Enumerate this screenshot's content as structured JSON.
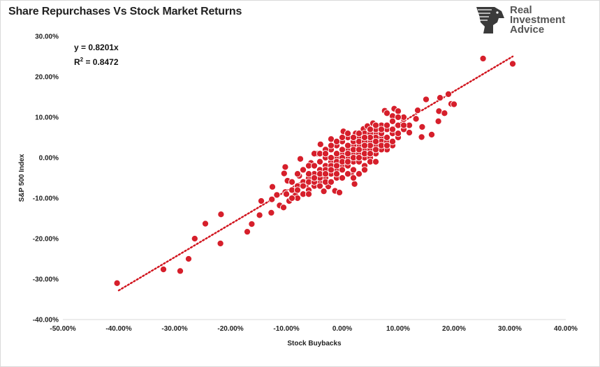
{
  "header": {
    "title": "Share Repurchases Vs Stock Market Returns"
  },
  "logo": {
    "line1": "Real",
    "line2": "Investment",
    "line3": "Advice",
    "icon": "eagle-head-icon"
  },
  "regression": {
    "equation": "y = 0.8201x",
    "r2_prefix": "R",
    "r2_sup": "2",
    "r2_value": " = 0.8472",
    "slope": 0.8201,
    "line_color": "#d0101a",
    "x_range": [
      -40,
      30.5
    ]
  },
  "colors": {
    "point_fill": "#d61f2b",
    "point_stroke": "#ffffff",
    "grid": "#e6e6e6"
  },
  "chart_data": {
    "type": "scatter",
    "title": "Share Repurchases Vs Stock Market Returns",
    "xlabel": "Stock Buybacks",
    "ylabel": "S&P 500 Index",
    "xlim": [
      -50,
      40
    ],
    "ylim": [
      -40,
      30
    ],
    "x_ticks": [
      "-50.00%",
      "-40.00%",
      "-30.00%",
      "-20.00%",
      "-10.00%",
      "0.00%",
      "10.00%",
      "20.00%",
      "30.00%",
      "40.00%"
    ],
    "y_ticks": [
      "30.00%",
      "20.00%",
      "10.00%",
      "0.00%",
      "-10.00%",
      "-20.00%",
      "-30.00%",
      "-40.00%"
    ],
    "grid": "none",
    "points": [
      [
        -40.3,
        -31
      ],
      [
        -32,
        -27.6
      ],
      [
        -29,
        -28
      ],
      [
        -27.5,
        -25
      ],
      [
        -26.4,
        -20
      ],
      [
        -24.5,
        -16.3
      ],
      [
        -21.7,
        -14
      ],
      [
        -21.8,
        -21.2
      ],
      [
        -17,
        -18.3
      ],
      [
        -16.2,
        -16.4
      ],
      [
        -14.8,
        -14.2
      ],
      [
        -14.5,
        -10.7
      ],
      [
        -12.6,
        -10.3
      ],
      [
        -12.7,
        -13.6
      ],
      [
        -12.5,
        -7.2
      ],
      [
        -11.7,
        -9.2
      ],
      [
        -11.2,
        -11.8
      ],
      [
        -10.5,
        -12.3
      ],
      [
        -10.2,
        -8.5
      ],
      [
        -9.5,
        -10.7
      ],
      [
        -9.8,
        -5.7
      ],
      [
        -10.4,
        -3.9
      ],
      [
        -10.2,
        -2.3
      ],
      [
        -8.4,
        -9.3
      ],
      [
        -7.7,
        -4.5
      ],
      [
        -7.5,
        -0.3
      ],
      [
        -6.5,
        -6.8
      ],
      [
        -5.6,
        -1.3
      ],
      [
        -4.5,
        1
      ],
      [
        -3.9,
        3.3
      ],
      [
        -3.3,
        -8.3
      ],
      [
        -2.5,
        -7.1
      ],
      [
        -2,
        4.6
      ],
      [
        -1.3,
        -8.2
      ],
      [
        -0.5,
        -8.6
      ],
      [
        0.2,
        6.5
      ],
      [
        1.6,
        -4
      ],
      [
        2.2,
        -6.5
      ],
      [
        2.4,
        6
      ],
      [
        3.8,
        7.1
      ],
      [
        4.5,
        7.8
      ],
      [
        5,
        5.2
      ],
      [
        5.5,
        8.5
      ],
      [
        6.8,
        5
      ],
      [
        7.6,
        11.6
      ],
      [
        8,
        11
      ],
      [
        9,
        10.3
      ],
      [
        9.3,
        12.1
      ],
      [
        10,
        11.5
      ],
      [
        11,
        9.5
      ],
      [
        12,
        6.2
      ],
      [
        13.2,
        9.6
      ],
      [
        13.5,
        11.7
      ],
      [
        14.3,
        7.6
      ],
      [
        15,
        14.4
      ],
      [
        14.2,
        5.1
      ],
      [
        16,
        5.7
      ],
      [
        17.2,
        9
      ],
      [
        17.3,
        11.5
      ],
      [
        17.5,
        14.8
      ],
      [
        18.3,
        11
      ],
      [
        19.5,
        13.3
      ],
      [
        20,
        13.2
      ],
      [
        19,
        15.7
      ],
      [
        25.2,
        24.5
      ],
      [
        30.5,
        23.2
      ],
      [
        -3,
        -2
      ],
      [
        -1,
        0
      ],
      [
        0,
        1
      ],
      [
        1,
        2
      ],
      [
        2,
        1
      ],
      [
        3,
        3
      ],
      [
        4,
        2
      ],
      [
        5,
        4
      ],
      [
        6,
        6
      ],
      [
        7,
        5
      ],
      [
        8,
        7
      ],
      [
        -2,
        -1
      ],
      [
        -4,
        -3
      ],
      [
        -5,
        -4
      ],
      [
        -6,
        -5
      ],
      [
        -7,
        -6
      ],
      [
        -8,
        -7
      ],
      [
        -9,
        -8
      ],
      [
        -6,
        -2
      ],
      [
        -4,
        -6
      ],
      [
        -3,
        0
      ],
      [
        -1,
        -3
      ],
      [
        0,
        -2
      ],
      [
        1,
        0
      ],
      [
        2,
        -1
      ],
      [
        3,
        1
      ],
      [
        4,
        0
      ],
      [
        5,
        2
      ],
      [
        6,
        3
      ],
      [
        7,
        4
      ],
      [
        8,
        4
      ],
      [
        9,
        6
      ],
      [
        10,
        8
      ],
      [
        11,
        10
      ],
      [
        12,
        8
      ],
      [
        -2,
        2
      ],
      [
        -1,
        3
      ],
      [
        0,
        4
      ],
      [
        1,
        5
      ],
      [
        2,
        3
      ],
      [
        3,
        5
      ],
      [
        4,
        6
      ],
      [
        5,
        6
      ],
      [
        6,
        7
      ],
      [
        7,
        8
      ],
      [
        -5,
        -7
      ],
      [
        -7,
        -9
      ],
      [
        -8,
        -10
      ],
      [
        -6,
        -8
      ],
      [
        -3,
        -5
      ],
      [
        -2,
        -4
      ],
      [
        -1,
        -5
      ],
      [
        0,
        -3
      ],
      [
        1,
        -2
      ],
      [
        2,
        -3
      ],
      [
        3,
        -1
      ],
      [
        4,
        -2
      ],
      [
        5,
        0
      ],
      [
        6,
        1
      ],
      [
        8,
        2
      ],
      [
        9,
        3
      ],
      [
        10,
        5
      ],
      [
        11,
        7
      ],
      [
        -4,
        -1
      ],
      [
        -5,
        -2
      ],
      [
        -3,
        2
      ],
      [
        -2,
        0
      ],
      [
        -1,
        1
      ],
      [
        0,
        2
      ],
      [
        1,
        3
      ],
      [
        2,
        4
      ],
      [
        3,
        4
      ],
      [
        4,
        4
      ],
      [
        5,
        3
      ],
      [
        6,
        5
      ],
      [
        7,
        6
      ],
      [
        8,
        8
      ],
      [
        9,
        9
      ],
      [
        10,
        10
      ],
      [
        -6,
        -6
      ],
      [
        -4,
        -5
      ],
      [
        -3,
        -3
      ],
      [
        -2,
        -2
      ],
      [
        -1,
        -1
      ],
      [
        0,
        0
      ],
      [
        1,
        1
      ],
      [
        2,
        2
      ],
      [
        3,
        2
      ],
      [
        4,
        3
      ],
      [
        5,
        5
      ],
      [
        6,
        4
      ],
      [
        7,
        7
      ],
      [
        -9,
        -6
      ],
      [
        -8,
        -4
      ],
      [
        -7,
        -3
      ],
      [
        -6,
        -4
      ],
      [
        -5,
        -6
      ],
      [
        -4,
        -7
      ],
      [
        -3,
        -6
      ],
      [
        -2,
        -6
      ],
      [
        -1,
        -4
      ],
      [
        0,
        -5
      ],
      [
        1,
        -4
      ],
      [
        2,
        -5
      ],
      [
        3,
        -4
      ],
      [
        4,
        -3
      ],
      [
        5,
        -1
      ],
      [
        6,
        -1
      ],
      [
        7,
        2
      ],
      [
        8,
        5
      ],
      [
        9,
        7
      ],
      [
        -5,
        1
      ],
      [
        -4,
        1
      ],
      [
        -3,
        1
      ],
      [
        -2,
        3
      ],
      [
        -1,
        4
      ],
      [
        0,
        5
      ],
      [
        1,
        6
      ],
      [
        2,
        5
      ],
      [
        3,
        6
      ],
      [
        4,
        5
      ],
      [
        5,
        7
      ],
      [
        6,
        8
      ],
      [
        -10,
        -9
      ],
      [
        -9,
        -10
      ],
      [
        -8,
        -8
      ],
      [
        -7,
        -7
      ],
      [
        -6,
        -9
      ],
      [
        -5,
        -5
      ],
      [
        -4,
        -4
      ],
      [
        -3,
        -4
      ],
      [
        -2,
        -3
      ],
      [
        -1,
        -2
      ],
      [
        0,
        -1
      ],
      [
        1,
        -1
      ],
      [
        2,
        0
      ],
      [
        3,
        0
      ],
      [
        4,
        1
      ],
      [
        5,
        1
      ],
      [
        6,
        2
      ],
      [
        7,
        3
      ],
      [
        8,
        3
      ],
      [
        9,
        4
      ],
      [
        10,
        6
      ],
      [
        11,
        8
      ]
    ]
  }
}
